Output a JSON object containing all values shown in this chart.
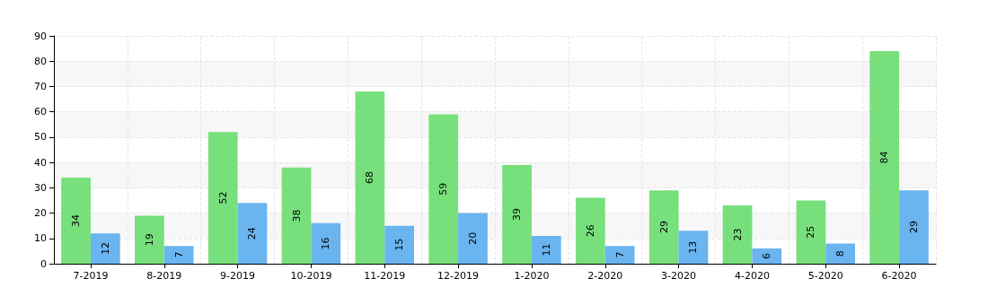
{
  "chart_data": {
    "type": "bar",
    "categories": [
      "7-2019",
      "8-2019",
      "9-2019",
      "10-2019",
      "11-2019",
      "12-2019",
      "1-2020",
      "2-2020",
      "3-2020",
      "4-2020",
      "5-2020",
      "6-2020"
    ],
    "series": [
      {
        "color": "#77e07c",
        "values": [
          34,
          19,
          52,
          38,
          68,
          59,
          39,
          26,
          29,
          23,
          25,
          84
        ]
      },
      {
        "color": "#6ab4f0",
        "values": [
          12,
          7,
          24,
          16,
          15,
          20,
          11,
          7,
          13,
          6,
          8,
          29
        ]
      }
    ],
    "ylim": [
      0,
      90
    ],
    "yticks": [
      0,
      10,
      20,
      30,
      40,
      50,
      60,
      70,
      80,
      90
    ],
    "grid": true,
    "data_labels": true
  }
}
